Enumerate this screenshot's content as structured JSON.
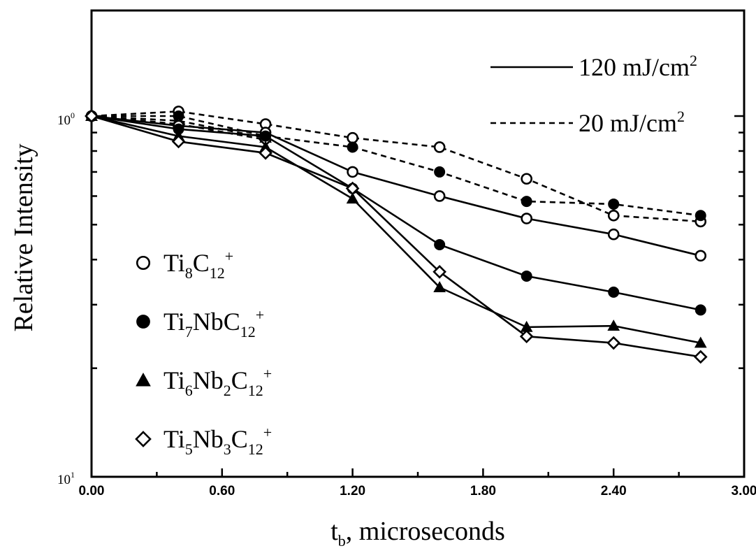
{
  "chart_data": {
    "type": "line",
    "xlabel_main": "t",
    "xlabel_sub": "b",
    "xlabel_rest": ", microseconds",
    "ylabel": "Relative Intensity",
    "xlim": [
      0.0,
      3.0
    ],
    "ylim": [
      0.1,
      1.5
    ],
    "y_scale": "log",
    "grid": false,
    "x_ticks": [
      "0.00",
      "0.60",
      "1.20",
      "1.80",
      "2.40",
      "3.00"
    ],
    "x_tick_values": [
      0.0,
      0.6,
      1.2,
      1.8,
      2.4,
      3.0
    ],
    "y_tick_top": {
      "base": "10",
      "exp": "0",
      "value": 1.0
    },
    "y_tick_bottom": {
      "base": "10",
      "exp": "1",
      "value": 0.1
    },
    "line_legend": {
      "position": "top-right",
      "entries": [
        {
          "style": "solid",
          "label": "120 mJ/cm",
          "sup": "2"
        },
        {
          "style": "dashed",
          "label": "20 mJ/cm",
          "sup": "2"
        }
      ]
    },
    "marker_legend": {
      "position": "left",
      "entries": [
        {
          "marker": "open-circle",
          "parts": [
            [
              "Ti",
              ""
            ],
            [
              "8",
              "sub"
            ],
            [
              "C",
              ""
            ],
            [
              "12",
              "sub"
            ],
            [
              "+",
              "sup"
            ]
          ]
        },
        {
          "marker": "filled-circle",
          "parts": [
            [
              "Ti",
              ""
            ],
            [
              "7",
              "sub"
            ],
            [
              "NbC",
              ""
            ],
            [
              "12",
              "sub"
            ],
            [
              "+",
              "sup"
            ]
          ]
        },
        {
          "marker": "filled-triangle",
          "parts": [
            [
              "Ti",
              ""
            ],
            [
              "6",
              "sub"
            ],
            [
              "Nb",
              ""
            ],
            [
              "2",
              "sub"
            ],
            [
              "C",
              ""
            ],
            [
              "12",
              "sub"
            ],
            [
              "+",
              "sup"
            ]
          ]
        },
        {
          "marker": "open-diamond",
          "parts": [
            [
              "Ti",
              ""
            ],
            [
              "5",
              "sub"
            ],
            [
              "Nb",
              ""
            ],
            [
              "3",
              "sub"
            ],
            [
              "C",
              ""
            ],
            [
              "12",
              "sub"
            ],
            [
              "+",
              "sup"
            ]
          ]
        }
      ]
    },
    "series": [
      {
        "marker": "open-circle",
        "line": "dashed",
        "x": [
          0.0,
          0.4,
          0.8,
          1.2,
          1.6,
          2.0,
          2.4,
          2.8
        ],
        "y": [
          1.0,
          1.03,
          0.95,
          0.87,
          0.82,
          0.67,
          0.53,
          0.51
        ]
      },
      {
        "marker": "filled-circle",
        "line": "dashed",
        "x": [
          0.0,
          0.4,
          0.8,
          1.2,
          1.6,
          2.0,
          2.4,
          2.8
        ],
        "y": [
          1.0,
          1.0,
          0.88,
          0.82,
          0.7,
          0.58,
          0.57,
          0.53
        ]
      },
      {
        "marker": "filled-triangle",
        "line": "dashed",
        "x": [
          0.0,
          0.4,
          0.8
        ],
        "y": [
          1.0,
          0.97,
          0.87
        ]
      },
      {
        "marker": "open-diamond",
        "line": "dashed",
        "x": [
          0.0,
          0.4,
          0.8
        ],
        "y": [
          1.0,
          0.95,
          0.86
        ]
      },
      {
        "marker": "open-circle",
        "line": "solid",
        "x": [
          0.0,
          0.4,
          0.8,
          1.2,
          1.6,
          2.0,
          2.4,
          2.8
        ],
        "y": [
          1.0,
          0.94,
          0.9,
          0.7,
          0.6,
          0.52,
          0.47,
          0.41
        ]
      },
      {
        "marker": "filled-circle",
        "line": "solid",
        "x": [
          0.0,
          0.4,
          0.8,
          1.2,
          1.6,
          2.0,
          2.4,
          2.8
        ],
        "y": [
          1.0,
          0.92,
          0.88,
          0.63,
          0.44,
          0.36,
          0.325,
          0.29
        ]
      },
      {
        "marker": "filled-triangle",
        "line": "solid",
        "x": [
          0.0,
          0.4,
          0.8,
          1.2,
          1.6,
          2.0,
          2.4,
          2.8
        ],
        "y": [
          1.0,
          0.88,
          0.82,
          0.59,
          0.335,
          0.26,
          0.262,
          0.235
        ]
      },
      {
        "marker": "open-diamond",
        "line": "solid",
        "x": [
          0.0,
          0.4,
          0.8,
          1.2,
          1.6,
          2.0,
          2.4,
          2.8
        ],
        "y": [
          1.0,
          0.85,
          0.79,
          0.63,
          0.37,
          0.245,
          0.235,
          0.215
        ]
      }
    ]
  }
}
